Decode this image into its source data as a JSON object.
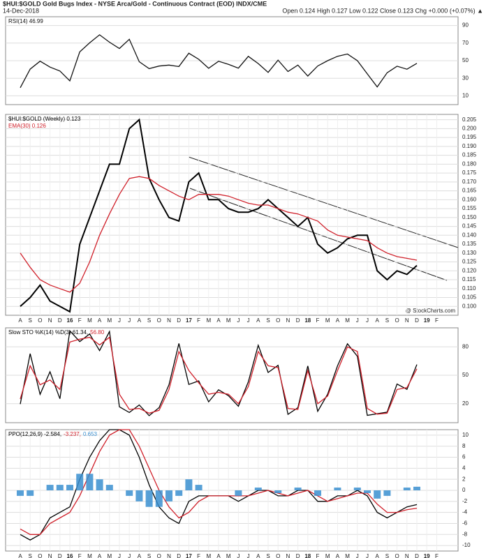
{
  "header": {
    "title": "$HUI:$GOLD Gold Bugs Index - NYSE Arca/Gold - Continuous Contract (EOD) INDX/CME",
    "date": "14-Dec-2018",
    "quote": "Open 0.124 High 0.127 Low 0.122 Close 0.123 Chg +0.000 (+0.07%) ▲",
    "source": "@ StockCharts.com"
  },
  "chart_data": [
    {
      "type": "line",
      "ylim": [
        0,
        100
      ],
      "yticks": [
        10,
        30,
        50,
        70,
        90
      ],
      "grid": true,
      "series": [
        {
          "name": "RSI(14) 46.99",
          "color": "#111111",
          "values": [
            19.24,
            40.42,
            49.44,
            42.69,
            38.22,
            27.04,
            60,
            70.29,
            79.44,
            71.07,
            63.86,
            74.33,
            48.77,
            40.98,
            43.9,
            45,
            43.37,
            58.47,
            51.61,
            41.35,
            49.34,
            45.83,
            41.54,
            54.9,
            46.73,
            36.63,
            50.65,
            37.7,
            45,
            32.55,
            44,
            50,
            55,
            57.6,
            50,
            35,
            20.17,
            36.26,
            43.74,
            40.34,
            46.99,
            null,
            null
          ]
        }
      ]
    },
    {
      "type": "line",
      "ylim": [
        0.095,
        0.208
      ],
      "yticks": [
        {
          "value": 0.1,
          "label": "0.100"
        },
        {
          "value": 0.105,
          "label": "0.105"
        },
        {
          "value": 0.11,
          "label": "0.110"
        },
        {
          "value": 0.115,
          "label": "0.115"
        },
        {
          "value": 0.12,
          "label": "0.120"
        },
        {
          "value": 0.125,
          "label": "0.125"
        },
        {
          "value": 0.13,
          "label": "0.130"
        },
        {
          "value": 0.135,
          "label": "0.135"
        },
        {
          "value": 0.14,
          "label": "0.140"
        },
        {
          "value": 0.145,
          "label": "0.145"
        },
        {
          "value": 0.15,
          "label": "0.150"
        },
        {
          "value": 0.155,
          "label": "0.155"
        },
        {
          "value": 0.16,
          "label": "0.160"
        },
        {
          "value": 0.165,
          "label": "0.165"
        },
        {
          "value": 0.17,
          "label": "0.170"
        },
        {
          "value": 0.175,
          "label": "0.175"
        },
        {
          "value": 0.18,
          "label": "0.180"
        },
        {
          "value": 0.185,
          "label": "0.185"
        },
        {
          "value": 0.19,
          "label": "0.190"
        },
        {
          "value": 0.195,
          "label": "0.195"
        },
        {
          "value": 0.2,
          "label": "0.200"
        },
        {
          "value": 0.205,
          "label": "0.205"
        }
      ],
      "grid": true,
      "categories": [
        "A",
        "S",
        "O",
        "N",
        "D",
        "16",
        "F",
        "M",
        "A",
        "M",
        "J",
        "J",
        "A",
        "S",
        "O",
        "N",
        "D",
        "17",
        "F",
        "M",
        "A",
        "M",
        "J",
        "J",
        "A",
        "S",
        "O",
        "N",
        "D",
        "18",
        "F",
        "M",
        "A",
        "M",
        "J",
        "J",
        "A",
        "S",
        "O",
        "N",
        "D",
        "19",
        "F"
      ],
      "series": [
        {
          "name": "$HUI:$GOLD (Weekly) 0.123",
          "color": "#000000",
          "values": [
            0.1,
            0.105,
            0.112,
            0.103,
            0.1,
            0.097,
            0.135,
            0.15,
            0.165,
            0.18,
            0.18,
            0.2,
            0.205,
            0.172,
            0.16,
            0.15,
            0.148,
            0.17,
            0.175,
            0.16,
            0.16,
            0.155,
            0.153,
            0.153,
            0.155,
            0.16,
            0.155,
            0.15,
            0.145,
            0.15,
            0.135,
            0.13,
            0.133,
            0.138,
            0.14,
            0.14,
            0.12,
            0.115,
            0.12,
            0.118,
            0.123,
            null,
            null
          ]
        },
        {
          "name": "EMA(30) 0.126",
          "color": "#d0202a",
          "values": [
            0.13,
            0.122,
            0.115,
            0.112,
            0.11,
            0.108,
            0.113,
            0.125,
            0.14,
            0.152,
            0.163,
            0.172,
            0.173,
            0.172,
            0.168,
            0.165,
            0.162,
            0.16,
            0.163,
            0.163,
            0.163,
            0.162,
            0.16,
            0.158,
            0.157,
            0.157,
            0.155,
            0.153,
            0.152,
            0.15,
            0.148,
            0.143,
            0.14,
            0.139,
            0.138,
            0.137,
            0.133,
            0.13,
            0.128,
            0.127,
            0.126,
            null,
            null
          ]
        }
      ]
    },
    {
      "type": "line",
      "ylim": [
        0,
        100
      ],
      "yticks": [
        20,
        50,
        80
      ],
      "grid": true,
      "series": [
        {
          "name": "Slow STO %K(14) %D(3) 61.34,",
          "color": "#000000",
          "values": [
            19.57,
            72.76,
            29.95,
            53.64,
            25.22,
            96.87,
            85.49,
            93.56,
            75.99,
            96.1,
            16.78,
            10.72,
            18.7,
            7.39,
            15.81,
            40,
            83.51,
            40.31,
            44.03,
            22.01,
            34.74,
            28.45,
            17.33,
            43.01,
            81.65,
            52.91,
            60.42,
            8.72,
            15.82,
            59.88,
            11.96,
            30,
            60,
            83.17,
            70,
            7.72,
            9.42,
            11.09,
            40.84,
            35.14,
            61.34,
            null,
            null
          ]
        },
        {
          "name": "56.80",
          "color": "#d0202a",
          "values": [
            25,
            60,
            40,
            45,
            35,
            85,
            88,
            90,
            82,
            90,
            30,
            14,
            15,
            10,
            13,
            35,
            75,
            55,
            42,
            30,
            32,
            30,
            20,
            38,
            75,
            60,
            58,
            15,
            14,
            55,
            20,
            28,
            55,
            80,
            75,
            15,
            9,
            10,
            35,
            37,
            56.8,
            null,
            null
          ]
        }
      ]
    },
    {
      "type": "line",
      "ylim": [
        -11,
        11
      ],
      "yticks": [
        10,
        8,
        6,
        4,
        2,
        0,
        -2,
        -4,
        -6,
        -8,
        -10
      ],
      "grid": true,
      "categories": [
        "A",
        "S",
        "O",
        "N",
        "D",
        "16",
        "F",
        "M",
        "A",
        "M",
        "J",
        "J",
        "A",
        "S",
        "O",
        "N",
        "D",
        "17",
        "F",
        "M",
        "A",
        "M",
        "J",
        "J",
        "A",
        "S",
        "O",
        "N",
        "D",
        "18",
        "F",
        "M",
        "A",
        "M",
        "J",
        "J",
        "A",
        "S",
        "O",
        "N",
        "D",
        "19",
        "F"
      ],
      "series": [
        {
          "name": "PPO(12,26,9) -2.584,",
          "color": "#000000",
          "values": [
            -8,
            -9,
            -8,
            -5,
            -4,
            -3,
            2,
            6,
            9,
            11,
            11,
            10,
            6,
            1,
            -3,
            -5,
            -6,
            -2,
            -1,
            -1,
            -1,
            -1,
            -2,
            -1,
            0,
            0,
            -1,
            -1,
            0,
            0,
            -2,
            -2,
            -1,
            -1,
            0,
            -1,
            -4,
            -5,
            -4,
            -3,
            -2.584,
            null,
            null
          ]
        },
        {
          "name": "-3.237,",
          "color": "#d0202a",
          "values": [
            -7,
            -8,
            -8,
            -6,
            -5,
            -4,
            -1,
            3,
            7,
            10,
            11,
            11,
            8,
            4,
            0,
            -3,
            -5,
            -4,
            -2,
            -1,
            -1,
            -1,
            -1,
            -1,
            -0.5,
            0,
            -0.5,
            -1,
            -0.5,
            0,
            -1,
            -2,
            -1.5,
            -1,
            -0.5,
            -0.5,
            -2.5,
            -4,
            -4,
            -3.5,
            -3.237,
            null,
            null
          ]
        },
        {
          "name": "0.653",
          "color": "#3a8fd0",
          "kind": "bar",
          "values": [
            -1,
            -1,
            0,
            1,
            1,
            1,
            3,
            3,
            2,
            1,
            0,
            -1,
            -2,
            -3,
            -3,
            -2,
            -1,
            2,
            1,
            0,
            0,
            0,
            -1,
            0,
            0.5,
            0,
            -0.5,
            0,
            0.5,
            0,
            -1,
            0,
            0.5,
            0,
            0.5,
            -0.5,
            -1.5,
            -1,
            0,
            0.5,
            0.653,
            null,
            null
          ]
        }
      ]
    }
  ]
}
